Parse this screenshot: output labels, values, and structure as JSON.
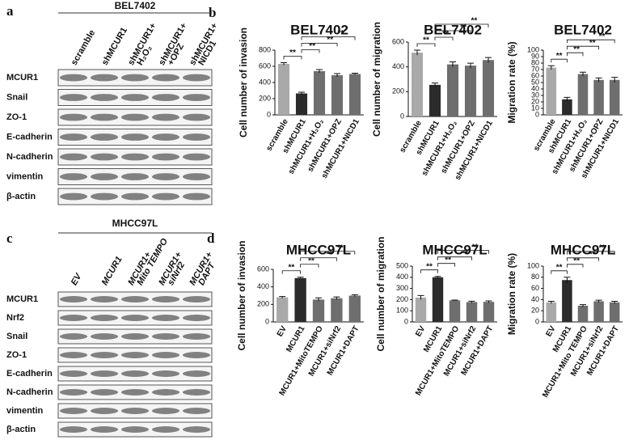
{
  "panels": {
    "a": "a",
    "b": "b",
    "c": "c",
    "d": "d"
  },
  "blots": [
    {
      "header": "BEL7402",
      "lanes": [
        [
          "scramble"
        ],
        [
          "shMCUR1"
        ],
        [
          "shMCUR1+",
          "H₂O₂"
        ],
        [
          "shMCUR1+",
          "+OPZ"
        ],
        [
          "shMCUR1+",
          "NICD1"
        ]
      ],
      "rows": [
        "MCUR1",
        "Snail",
        "ZO-1",
        "E-cadherin",
        "N-cadherin",
        "vimentin",
        "β-actin"
      ]
    },
    {
      "header": "MHCC97L",
      "lanes": [
        [
          "EV"
        ],
        [
          "MCUR1"
        ],
        [
          "MCUR1+",
          "Mito TEMPO"
        ],
        [
          "MCUR1+",
          "siNrf2"
        ],
        [
          "MCUR1+",
          "DAPT"
        ]
      ],
      "rows": [
        "MCUR1",
        "Nrf2",
        "Snail",
        "ZO-1",
        "E-cadherin",
        "N-cadherin",
        "vimentin",
        "β-actin"
      ]
    }
  ],
  "chart_data": [
    {
      "type": "bar",
      "title": "BEL7402",
      "y_label": "Cell number of invasion",
      "categories": [
        "scramble",
        "shMCUR1",
        "shMCUR1+H₂O₂",
        "shMCUR1+OPZ",
        "shMCUR1+NICD1"
      ],
      "values": [
        630,
        265,
        540,
        490,
        505
      ],
      "errors": [
        15,
        15,
        20,
        20,
        10
      ],
      "colors": [
        "#a9a9a9",
        "#2b2b2b",
        "#6e6e6e",
        "#6e6e6e",
        "#6e6e6e"
      ],
      "ylim": [
        0,
        800
      ],
      "yticks": [
        0,
        200,
        400,
        600,
        800
      ],
      "significance": [
        "**",
        "**",
        "**",
        "**"
      ]
    },
    {
      "type": "bar",
      "title": "BEL7402",
      "y_label": "Cell number of migration",
      "categories": [
        "scramble",
        "shMCUR1",
        "shMCUR1+H₂O₂",
        "shMCUR1+OPZ",
        "shMCUR1+NICD1"
      ],
      "values": [
        515,
        255,
        420,
        410,
        455
      ],
      "errors": [
        20,
        15,
        20,
        20,
        20
      ],
      "colors": [
        "#a9a9a9",
        "#2b2b2b",
        "#6e6e6e",
        "#6e6e6e",
        "#6e6e6e"
      ],
      "ylim": [
        0,
        600
      ],
      "yticks": [
        0,
        200,
        400,
        600
      ],
      "significance": [
        "**",
        "**",
        "**",
        "**"
      ]
    },
    {
      "type": "bar",
      "title": "BEL7402",
      "y_label": "Migration rate (%)",
      "categories": [
        "scramble",
        "shMCUR1",
        "shMCUR1+H₂O₂",
        "shMCUR1+OPZ",
        "shMCUR1+NICD1"
      ],
      "values": [
        73,
        24,
        63,
        54,
        54
      ],
      "errors": [
        3,
        3,
        3,
        3,
        4
      ],
      "colors": [
        "#a9a9a9",
        "#2b2b2b",
        "#6e6e6e",
        "#6e6e6e",
        "#6e6e6e"
      ],
      "ylim": [
        0,
        100
      ],
      "yticks": [
        0,
        10,
        20,
        30,
        40,
        50,
        60,
        70,
        80,
        90,
        100
      ],
      "significance": [
        "**",
        "**",
        "**",
        "**"
      ]
    },
    {
      "type": "bar",
      "title": "MHCC97L",
      "y_label": "Cell number of invasion",
      "categories": [
        "EV",
        "MCUR1",
        "MCUR1+MitoTEMPO",
        "MCUR1+siNrf2",
        "MCUR1+DAPT"
      ],
      "values": [
        280,
        500,
        255,
        270,
        300
      ],
      "errors": [
        10,
        10,
        20,
        15,
        10
      ],
      "colors": [
        "#a9a9a9",
        "#2b2b2b",
        "#6e6e6e",
        "#6e6e6e",
        "#6e6e6e"
      ],
      "ylim": [
        0,
        600
      ],
      "yticks": [
        0,
        200,
        400,
        600
      ],
      "significance": [
        "**",
        "**",
        "**",
        "**"
      ]
    },
    {
      "type": "bar",
      "title": "MHCC97L",
      "y_label": "Cell number of migration",
      "categories": [
        "EV",
        "MCUR1",
        "MCUR1+MitoTEMPO",
        "MCUR1+siNrf2",
        "MCUR1+DAPT"
      ],
      "values": [
        218,
        400,
        193,
        178,
        180
      ],
      "errors": [
        18,
        8,
        3,
        8,
        8
      ],
      "colors": [
        "#a9a9a9",
        "#2b2b2b",
        "#6e6e6e",
        "#6e6e6e",
        "#6e6e6e"
      ],
      "ylim": [
        0,
        500
      ],
      "yticks": [
        0,
        100,
        200,
        300,
        400,
        500
      ],
      "significance": [
        "**",
        "**",
        "**",
        "**"
      ]
    },
    {
      "type": "bar",
      "title": "MHCC97L",
      "y_label": "Migration rate (%)",
      "categories": [
        "EV",
        "MCUR1",
        "MCUR1+Mito TEMPO",
        "MCUR1+siNrf2",
        "MCUR1+DAPT"
      ],
      "values": [
        35,
        75,
        29,
        37,
        35
      ],
      "errors": [
        2,
        5,
        2,
        2,
        2
      ],
      "colors": [
        "#a9a9a9",
        "#2b2b2b",
        "#6e6e6e",
        "#6e6e6e",
        "#6e6e6e"
      ],
      "ylim": [
        0,
        100
      ],
      "yticks": [
        0,
        20,
        40,
        60,
        80,
        100
      ],
      "significance": [
        "**",
        "**",
        "**",
        "**"
      ]
    }
  ]
}
